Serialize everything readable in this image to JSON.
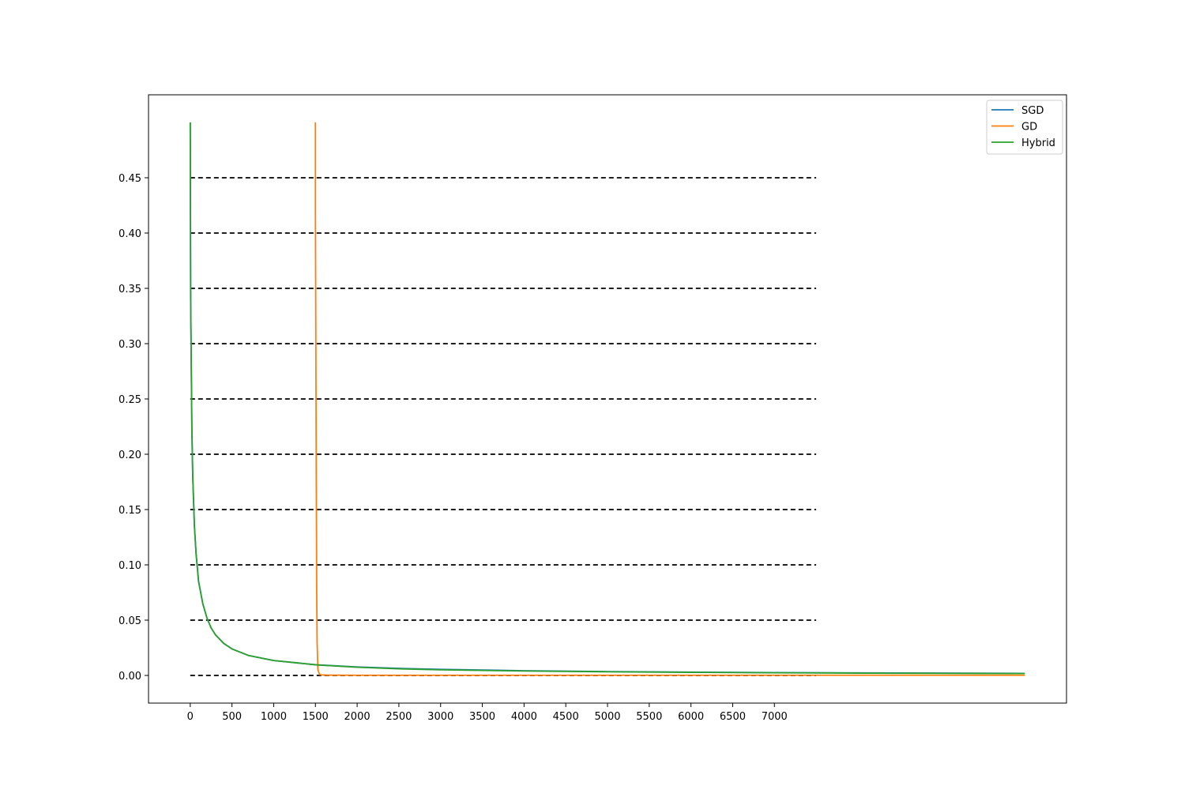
{
  "chart_data": {
    "type": "line",
    "title": "",
    "xlabel": "",
    "ylabel": "",
    "xlim": [
      -500,
      10500
    ],
    "ylim": [
      -0.025,
      0.525
    ],
    "xticks": [
      0,
      500,
      1000,
      1500,
      2000,
      2500,
      3000,
      3500,
      4000,
      4500,
      5000,
      5500,
      6000,
      6500,
      7000
    ],
    "yticks": [
      0.0,
      0.05,
      0.1,
      0.15,
      0.2,
      0.25,
      0.3,
      0.35,
      0.4,
      0.45
    ],
    "xtick_labels": [
      "0",
      "500",
      "1000",
      "1500",
      "2000",
      "2500",
      "3000",
      "3500",
      "4000",
      "4500",
      "5000",
      "5500",
      "6000",
      "6500",
      "7000"
    ],
    "ytick_labels": [
      "0.00",
      "0.05",
      "0.10",
      "0.15",
      "0.20",
      "0.25",
      "0.30",
      "0.35",
      "0.40",
      "0.45"
    ],
    "reference_lines": {
      "style": "dashed",
      "color": "#000000",
      "y_values": [
        0.0,
        0.05,
        0.1,
        0.15,
        0.2,
        0.25,
        0.3,
        0.35,
        0.4,
        0.45
      ],
      "x_range": [
        0,
        7500
      ]
    },
    "legend": {
      "placement": "top-right",
      "entries": [
        "SGD",
        "GD",
        "Hybrid"
      ]
    },
    "series": [
      {
        "name": "SGD",
        "color": "#1f77b4",
        "x": [
          0,
          5,
          10,
          20,
          30,
          50,
          70,
          100,
          150,
          200,
          250,
          300,
          400,
          500,
          700,
          1000,
          1300,
          1500,
          2000,
          2500,
          3000,
          4000,
          5000,
          6000,
          7000,
          8000,
          9000,
          10000
        ],
        "y": [
          0.5,
          0.34,
          0.3,
          0.22,
          0.18,
          0.135,
          0.11,
          0.085,
          0.065,
          0.052,
          0.043,
          0.037,
          0.029,
          0.024,
          0.018,
          0.0135,
          0.0112,
          0.0097,
          0.0077,
          0.0064,
          0.0055,
          0.0043,
          0.0035,
          0.003,
          0.0026,
          0.0023,
          0.0021,
          0.0019
        ]
      },
      {
        "name": "GD",
        "color": "#ff7f0e",
        "x": [
          1500,
          1500,
          1505,
          1510,
          1515,
          1520,
          1530,
          1550,
          1600,
          2000,
          3000,
          5000,
          7000,
          10000
        ],
        "y": [
          0.5,
          0.42,
          0.3,
          0.18,
          0.08,
          0.03,
          0.005,
          0.0008,
          0.0003,
          0.0002,
          0.0002,
          0.0002,
          0.0002,
          0.0002
        ]
      },
      {
        "name": "Hybrid",
        "color": "#2ca02c",
        "x": [
          0,
          5,
          10,
          20,
          30,
          50,
          70,
          100,
          150,
          200,
          250,
          300,
          400,
          500,
          700,
          1000,
          1300,
          1500,
          1520,
          2000,
          2500,
          3000,
          4000,
          5000,
          6000,
          7000,
          8000,
          9000,
          10000
        ],
        "y": [
          0.5,
          0.34,
          0.3,
          0.22,
          0.18,
          0.135,
          0.11,
          0.085,
          0.065,
          0.052,
          0.043,
          0.037,
          0.029,
          0.024,
          0.018,
          0.0135,
          0.0112,
          0.0097,
          0.0095,
          0.0074,
          0.006,
          0.0051,
          0.004,
          0.0033,
          0.0028,
          0.0024,
          0.0021,
          0.0019,
          0.0017
        ]
      }
    ]
  }
}
